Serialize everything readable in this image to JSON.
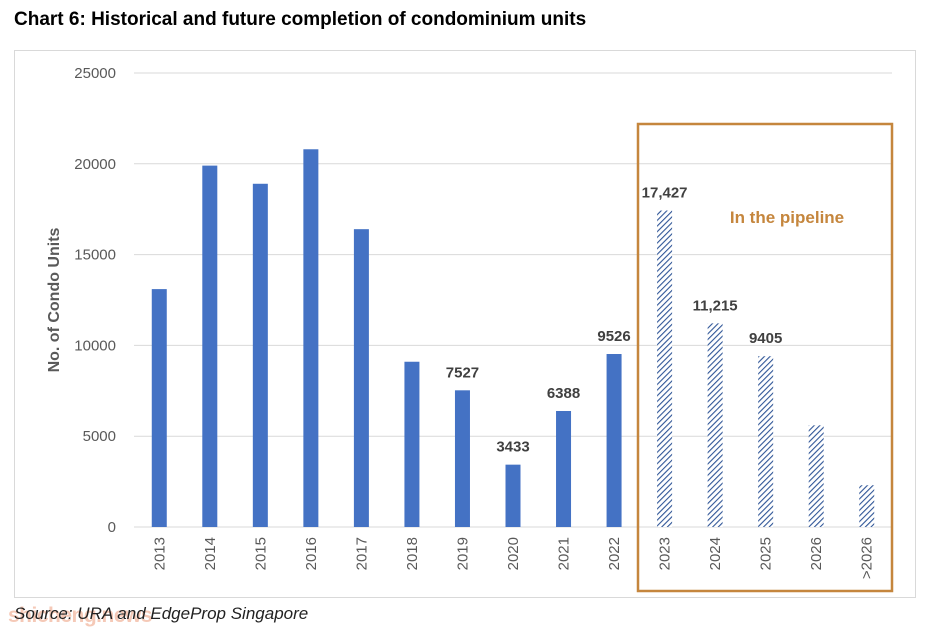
{
  "page": {
    "title": "Chart 6: Historical and future completion of condominium units",
    "source": "Source: URA and EdgeProp Singapore",
    "watermark": "shicheng.news"
  },
  "chart_data": {
    "type": "bar",
    "ylabel": "No. of Condo Units",
    "xlabel": "",
    "ylim": [
      0,
      25000
    ],
    "yticks": [
      0,
      5000,
      10000,
      15000,
      20000,
      25000
    ],
    "grid": true,
    "categories": [
      "2013",
      "2014",
      "2015",
      "2016",
      "2017",
      "2018",
      "2019",
      "2020",
      "2021",
      "2022",
      "2023",
      "2024",
      "2025",
      "2026",
      ">2026"
    ],
    "values": [
      13100,
      19900,
      18900,
      20800,
      16400,
      9100,
      7527,
      3433,
      6388,
      9526,
      17427,
      11215,
      9405,
      5600,
      2300
    ],
    "data_labels": [
      "",
      "",
      "",
      "",
      "",
      "",
      "7527",
      "3433",
      "6388",
      "9526",
      "17,427",
      "11,215",
      "9405",
      "",
      ""
    ],
    "hatched": [
      false,
      false,
      false,
      false,
      false,
      false,
      false,
      false,
      false,
      false,
      true,
      true,
      true,
      true,
      true
    ],
    "annotation": "In the pipeline",
    "colors": {
      "bar": "#4472c4",
      "hatch": "#2f5597",
      "pipeline_box": "#c5863d",
      "grid": "#d9d9d9",
      "axis_text": "#595959"
    }
  }
}
